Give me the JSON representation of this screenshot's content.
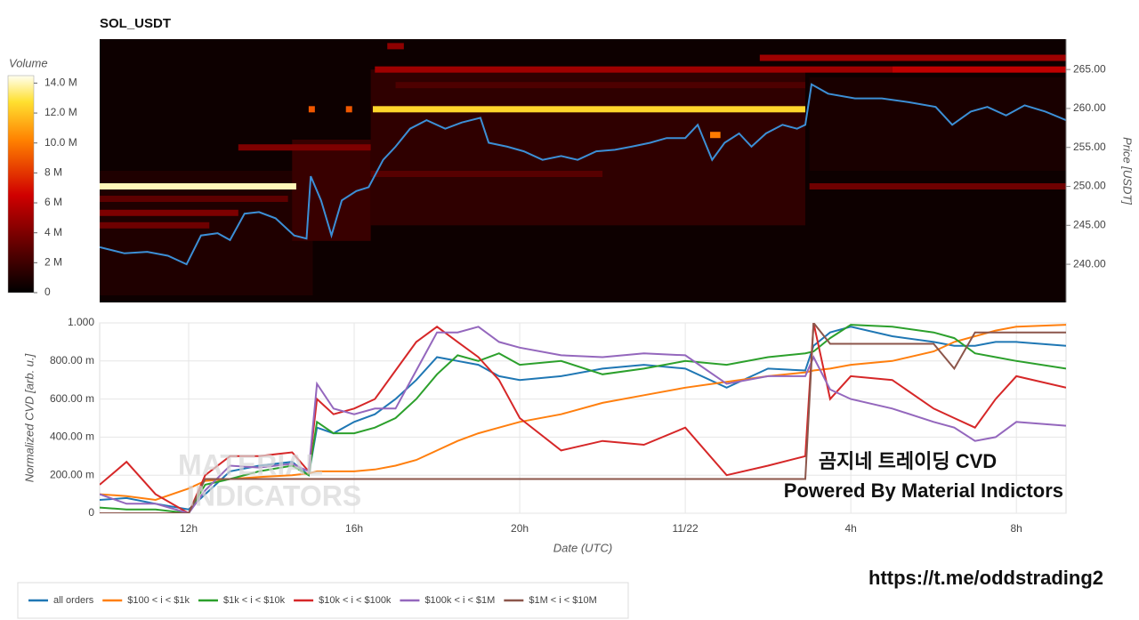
{
  "chart_data": [
    {
      "type": "heatmap",
      "title": "SOL_USDT",
      "y_label": "Price [USDT]",
      "xlim": [
        9.85,
        33.2
      ],
      "ylim": [
        235.1,
        268.9
      ],
      "yticks": [
        {
          "value": 240,
          "label": "240.00"
        },
        {
          "value": 245,
          "label": "245.00"
        },
        {
          "value": 250,
          "label": "250.00"
        },
        {
          "value": 255,
          "label": "255.00"
        },
        {
          "value": 260,
          "label": "260.00"
        },
        {
          "value": 265,
          "label": "265.00"
        }
      ],
      "colorbar": {
        "label": "Volume",
        "lim": [
          0,
          14500000
        ],
        "ticks": [
          {
            "value": 0,
            "label": "0"
          },
          {
            "value": 2000000,
            "label": "2 M"
          },
          {
            "value": 4000000,
            "label": "4 M"
          },
          {
            "value": 6000000,
            "label": "6 M"
          },
          {
            "value": 8000000,
            "label": "8 M"
          },
          {
            "value": 10000000,
            "label": "10.0 M"
          },
          {
            "value": 12000000,
            "label": "12.0 M"
          },
          {
            "value": 14000000,
            "label": "14.0 M"
          }
        ]
      },
      "bands": [
        {
          "low": 236,
          "high": 252,
          "start": 9.85,
          "end": 15.0,
          "volume": 1000000
        },
        {
          "low": 245,
          "high": 265,
          "start": 16.4,
          "end": 26.9,
          "volume": 1500000
        },
        {
          "low": 252,
          "high": 264,
          "start": 27.0,
          "end": 33.2,
          "volume": 800000
        },
        {
          "low": 243,
          "high": 256,
          "start": 14.5,
          "end": 16.4,
          "volume": 1800000
        },
        {
          "low": 246.2,
          "high": 247.0,
          "start": 9.85,
          "end": 13.2,
          "volume": 4000000
        },
        {
          "low": 244.6,
          "high": 245.4,
          "start": 9.85,
          "end": 12.5,
          "volume": 3500000
        },
        {
          "low": 248.0,
          "high": 248.8,
          "start": 9.85,
          "end": 14.4,
          "volume": 3000000
        },
        {
          "low": 254.6,
          "high": 255.4,
          "start": 13.2,
          "end": 16.4,
          "volume": 4000000
        },
        {
          "low": 249.6,
          "high": 250.4,
          "start": 9.85,
          "end": 14.6,
          "volume": 14000000
        },
        {
          "low": 259.5,
          "high": 260.3,
          "start": 16.45,
          "end": 26.9,
          "volume": 12500000
        },
        {
          "low": 259.5,
          "high": 260.3,
          "start": 14.9,
          "end": 15.05,
          "volume": 9000000
        },
        {
          "low": 259.5,
          "high": 260.3,
          "start": 15.8,
          "end": 15.95,
          "volume": 9000000
        },
        {
          "low": 256.2,
          "high": 257.0,
          "start": 24.6,
          "end": 24.85,
          "volume": 10000000
        },
        {
          "low": 264.6,
          "high": 265.4,
          "start": 16.5,
          "end": 29.0,
          "volume": 5000000
        },
        {
          "low": 264.6,
          "high": 265.4,
          "start": 29.0,
          "end": 33.2,
          "volume": 6000000
        },
        {
          "low": 266.1,
          "high": 266.9,
          "start": 25.8,
          "end": 33.2,
          "volume": 5000000
        },
        {
          "low": 267.6,
          "high": 268.4,
          "start": 16.8,
          "end": 17.2,
          "volume": 4500000
        },
        {
          "low": 249.6,
          "high": 250.4,
          "start": 27.0,
          "end": 33.2,
          "volume": 3500000
        },
        {
          "low": 251.2,
          "high": 252.0,
          "start": 16.4,
          "end": 22.0,
          "volume": 2800000
        },
        {
          "low": 262.6,
          "high": 263.4,
          "start": 17.0,
          "end": 26.9,
          "volume": 2500000
        }
      ],
      "price_line": {
        "color": "#3c8fd6",
        "x": [
          9.85,
          10.45,
          11.0,
          11.5,
          11.95,
          12.3,
          12.7,
          13.0,
          13.35,
          13.7,
          14.1,
          14.55,
          14.85,
          14.95,
          15.2,
          15.45,
          15.7,
          16.05,
          16.35,
          16.7,
          17.0,
          17.35,
          17.75,
          18.2,
          18.6,
          19.05,
          19.25,
          19.7,
          20.1,
          20.55,
          21.0,
          21.4,
          21.85,
          22.3,
          22.7,
          23.15,
          23.55,
          24.0,
          24.3,
          24.65,
          24.95,
          25.3,
          25.6,
          25.95,
          26.35,
          26.7,
          26.9,
          27.05,
          27.45,
          28.1,
          28.75,
          29.4,
          30.05,
          30.45,
          30.9,
          31.3,
          31.75,
          32.2,
          32.7,
          33.2
        ],
        "values": [
          242.2,
          241.4,
          241.6,
          241.1,
          240.0,
          243.7,
          244.0,
          243.1,
          246.5,
          246.7,
          245.9,
          243.7,
          243.3,
          251.3,
          248.2,
          243.7,
          248.2,
          249.4,
          249.9,
          253.4,
          255.1,
          257.4,
          258.5,
          257.4,
          258.2,
          258.8,
          255.6,
          255.1,
          254.5,
          253.4,
          253.9,
          253.4,
          254.5,
          254.7,
          255.1,
          255.6,
          256.2,
          256.2,
          257.9,
          253.4,
          255.6,
          256.8,
          255.1,
          256.8,
          257.9,
          257.4,
          257.9,
          263.1,
          261.9,
          261.3,
          261.3,
          260.8,
          260.2,
          257.9,
          259.6,
          260.2,
          259.1,
          260.4,
          259.6,
          258.5
        ]
      },
      "annotations": [
        "곰지네 트레이딩 CVD",
        "Powered By Material Indictors",
        "https://t.me/oddstrading2"
      ],
      "watermark": [
        "MATERIAL",
        "INDICATORS"
      ]
    },
    {
      "type": "line",
      "y_label": "Normalized CVD [arb. u.]",
      "x_label": "Date (UTC)",
      "grid": true,
      "legend": "bottom-left",
      "xlim": [
        9.85,
        33.2
      ],
      "ylim": [
        0,
        1
      ],
      "xticks": [
        {
          "value": 12,
          "label": "12h"
        },
        {
          "value": 16,
          "label": "16h"
        },
        {
          "value": 20,
          "label": "20h"
        },
        {
          "value": 24,
          "label": "11/22"
        },
        {
          "value": 28,
          "label": "4h"
        },
        {
          "value": 32,
          "label": "8h"
        }
      ],
      "yticks": [
        {
          "value": 0,
          "label": "0"
        },
        {
          "value": 0.2,
          "label": "200.00 m"
        },
        {
          "value": 0.4,
          "label": "400.00 m"
        },
        {
          "value": 0.6,
          "label": "600.00 m"
        },
        {
          "value": 0.8,
          "label": "800.00 m"
        },
        {
          "value": 1,
          "label": "1.000"
        }
      ],
      "x": [
        9.85,
        10.5,
        11.2,
        12,
        12.4,
        13,
        13.7,
        14.5,
        14.9,
        15.1,
        15.5,
        16,
        16.5,
        17,
        17.5,
        18,
        18.5,
        19,
        19.5,
        20,
        21,
        22,
        23,
        24,
        25,
        26,
        26.9,
        27.1,
        27.5,
        28,
        29,
        30,
        30.5,
        31,
        31.5,
        32,
        33.2
      ],
      "series": [
        {
          "name": "all orders",
          "color": "#1f77b4",
          "values": [
            0.07,
            0.08,
            0.05,
            0.02,
            0.1,
            0.22,
            0.25,
            0.27,
            0.2,
            0.45,
            0.42,
            0.48,
            0.52,
            0.6,
            0.7,
            0.82,
            0.8,
            0.78,
            0.72,
            0.7,
            0.72,
            0.76,
            0.78,
            0.76,
            0.66,
            0.76,
            0.75,
            0.88,
            0.95,
            0.98,
            0.93,
            0.9,
            0.88,
            0.88,
            0.9,
            0.9,
            0.88
          ]
        },
        {
          "name": "$100 < i < $1k",
          "color": "#ff7f0e",
          "values": [
            0.1,
            0.09,
            0.07,
            0.13,
            0.17,
            0.18,
            0.19,
            0.2,
            0.21,
            0.22,
            0.22,
            0.22,
            0.23,
            0.25,
            0.28,
            0.33,
            0.38,
            0.42,
            0.45,
            0.48,
            0.52,
            0.58,
            0.62,
            0.66,
            0.69,
            0.72,
            0.74,
            0.75,
            0.76,
            0.78,
            0.8,
            0.85,
            0.9,
            0.93,
            0.96,
            0.98,
            0.99
          ]
        },
        {
          "name": "$1k < i < $10k",
          "color": "#2ca02c",
          "values": [
            0.03,
            0.02,
            0.02,
            0.0,
            0.15,
            0.18,
            0.22,
            0.25,
            0.2,
            0.48,
            0.42,
            0.42,
            0.45,
            0.5,
            0.6,
            0.73,
            0.83,
            0.8,
            0.84,
            0.78,
            0.8,
            0.73,
            0.76,
            0.8,
            0.78,
            0.82,
            0.84,
            0.85,
            0.92,
            0.99,
            0.98,
            0.95,
            0.92,
            0.84,
            0.82,
            0.8,
            0.76
          ]
        },
        {
          "name": "$10k < i < $100k",
          "color": "#d62728",
          "values": [
            0.15,
            0.27,
            0.1,
            0.0,
            0.2,
            0.3,
            0.3,
            0.32,
            0.22,
            0.6,
            0.52,
            0.55,
            0.6,
            0.75,
            0.9,
            0.98,
            0.9,
            0.82,
            0.7,
            0.5,
            0.33,
            0.38,
            0.36,
            0.45,
            0.2,
            0.25,
            0.3,
            1.0,
            0.6,
            0.72,
            0.7,
            0.55,
            0.5,
            0.45,
            0.6,
            0.72,
            0.66
          ]
        },
        {
          "name": "$100k < i < $1M",
          "color": "#9467bd",
          "values": [
            0.1,
            0.05,
            0.05,
            0.0,
            0.12,
            0.25,
            0.24,
            0.26,
            0.22,
            0.68,
            0.55,
            0.52,
            0.55,
            0.55,
            0.75,
            0.95,
            0.95,
            0.98,
            0.9,
            0.87,
            0.83,
            0.82,
            0.84,
            0.83,
            0.68,
            0.72,
            0.72,
            0.82,
            0.65,
            0.6,
            0.55,
            0.48,
            0.45,
            0.38,
            0.4,
            0.48,
            0.46
          ]
        },
        {
          "name": "$1M < i < $10M",
          "color": "#8c564b",
          "values": [
            0.0,
            0.0,
            0.0,
            0.0,
            0.18,
            0.18,
            0.18,
            0.18,
            0.18,
            0.18,
            0.18,
            0.18,
            0.18,
            0.18,
            0.18,
            0.18,
            0.18,
            0.18,
            0.18,
            0.18,
            0.18,
            0.18,
            0.18,
            0.18,
            0.18,
            0.18,
            0.18,
            1.0,
            0.89,
            0.89,
            0.89,
            0.89,
            0.76,
            0.95,
            0.95,
            0.95,
            0.95
          ]
        }
      ]
    }
  ]
}
